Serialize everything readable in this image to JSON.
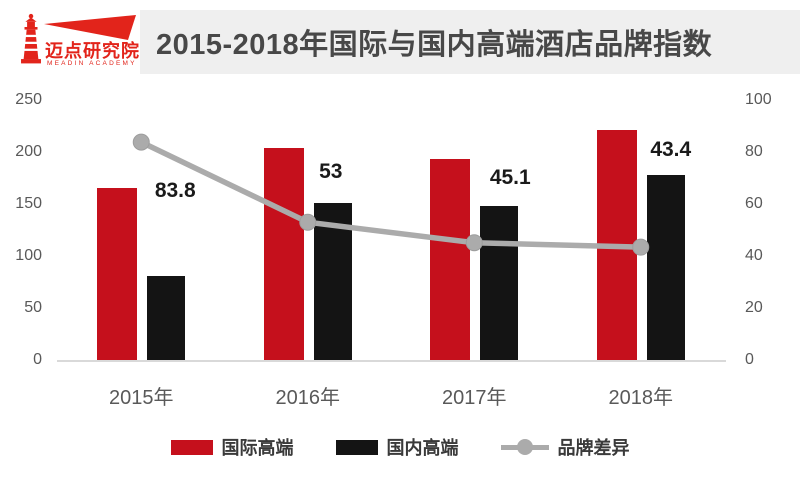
{
  "header": {
    "logo_name": "迈点研究院",
    "logo_subtitle": "MEADIN ACADEMY",
    "logo_color": "#e2241b",
    "title": "2015-2018年国际与国内高端酒店品牌指数"
  },
  "chart_data": {
    "type": "bar",
    "subtype": "combo-bar-line",
    "title": "2015-2018年国际与国内高端酒店品牌指数",
    "categories": [
      "2015年",
      "2016年",
      "2017年",
      "2018年"
    ],
    "series": [
      {
        "name": "国际高端",
        "type": "bar",
        "axis": "left",
        "color": "#c5101c",
        "values": [
          165,
          204,
          193,
          221
        ]
      },
      {
        "name": "国内高端",
        "type": "bar",
        "axis": "left",
        "color": "#141414",
        "values": [
          81,
          151,
          148,
          178
        ]
      },
      {
        "name": "品牌差异",
        "type": "line",
        "axis": "right",
        "color": "#ababab",
        "values": [
          83.8,
          53,
          45.1,
          43.4
        ],
        "point_labels": [
          "83.8",
          "53",
          "45.1",
          "43.4"
        ]
      }
    ],
    "left_axis": {
      "min": 0,
      "max": 250,
      "ticks": [
        250,
        200,
        150,
        100,
        50,
        0
      ]
    },
    "right_axis": {
      "min": 0,
      "max": 100,
      "ticks": [
        100,
        80,
        60,
        40,
        20,
        0
      ]
    },
    "grid": false,
    "legend_position": "bottom",
    "baseline_color": "#d9d9d9"
  }
}
